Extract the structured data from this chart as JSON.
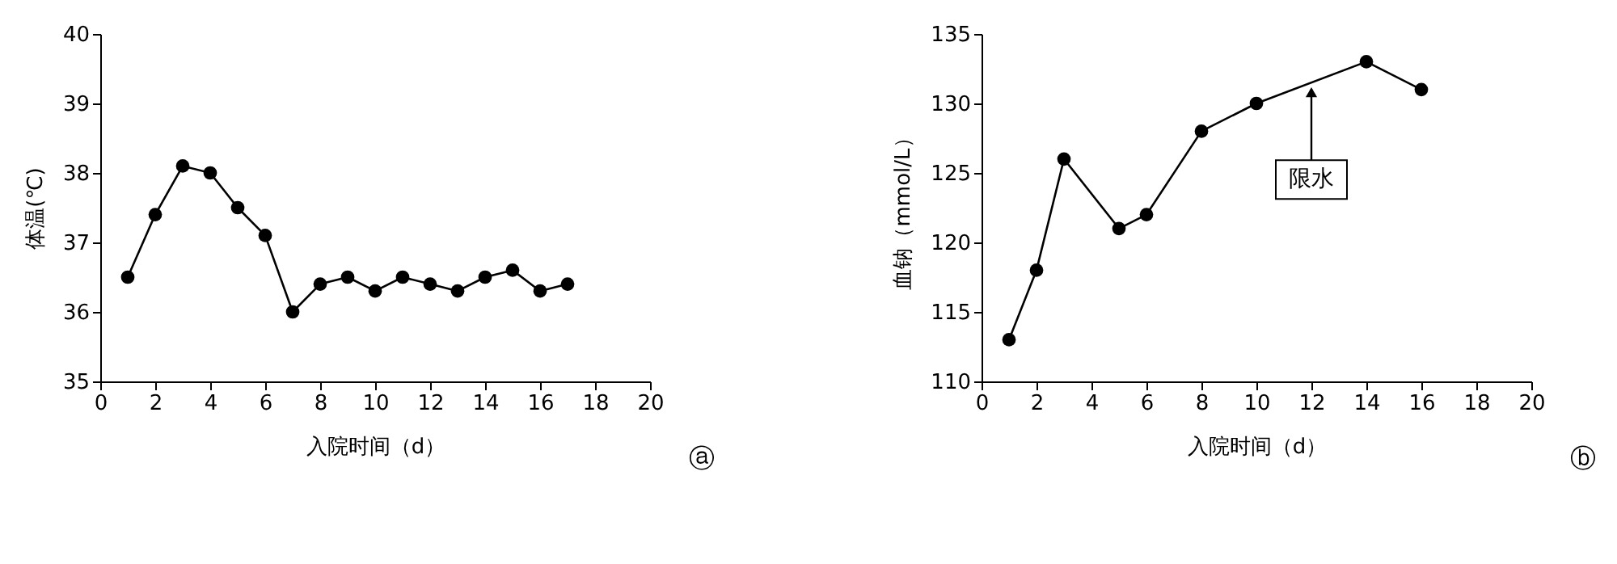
{
  "chart_data": [
    {
      "type": "line",
      "xlabel": "入院时间（d）",
      "ylabel": "体温(℃)",
      "marker": "circle",
      "line_style": "solid",
      "grid": false,
      "x": [
        1,
        2,
        3,
        4,
        5,
        6,
        7,
        8,
        9,
        10,
        11,
        12,
        13,
        14,
        15,
        16,
        17
      ],
      "series": [
        {
          "color": "#000000",
          "values": [
            36.5,
            37.4,
            38.1,
            38.0,
            37.5,
            37.1,
            36.0,
            36.4,
            36.5,
            36.3,
            36.5,
            36.4,
            36.3,
            36.5,
            36.6,
            36.3,
            36.4
          ]
        }
      ],
      "xlim": [
        0,
        20
      ],
      "xticks": [
        0,
        2,
        4,
        6,
        8,
        10,
        12,
        14,
        16,
        18,
        20
      ],
      "ylim": [
        35,
        40
      ],
      "yticks": [
        35,
        36,
        37,
        38,
        39,
        40
      ],
      "annotations": [
        "ⓐ"
      ]
    },
    {
      "type": "line",
      "xlabel": "入院时间（d）",
      "ylabel": "血钠（mmol/L）",
      "marker": "circle",
      "line_style": "solid",
      "grid": false,
      "x": [
        1,
        2,
        3,
        5,
        6,
        8,
        10,
        14,
        16
      ],
      "series": [
        {
          "color": "#000000",
          "values": [
            113,
            118,
            126,
            121,
            122,
            128,
            130,
            133,
            131
          ]
        }
      ],
      "xlim": [
        0,
        20
      ],
      "xticks": [
        0,
        2,
        4,
        6,
        8,
        10,
        12,
        14,
        16,
        18,
        20
      ],
      "ylim": [
        110,
        135
      ],
      "yticks": [
        110,
        115,
        120,
        125,
        130,
        135
      ],
      "annotations": [
        {
          "text": "限水",
          "x": 12,
          "y": 131.5
        },
        "ⓑ"
      ]
    }
  ]
}
